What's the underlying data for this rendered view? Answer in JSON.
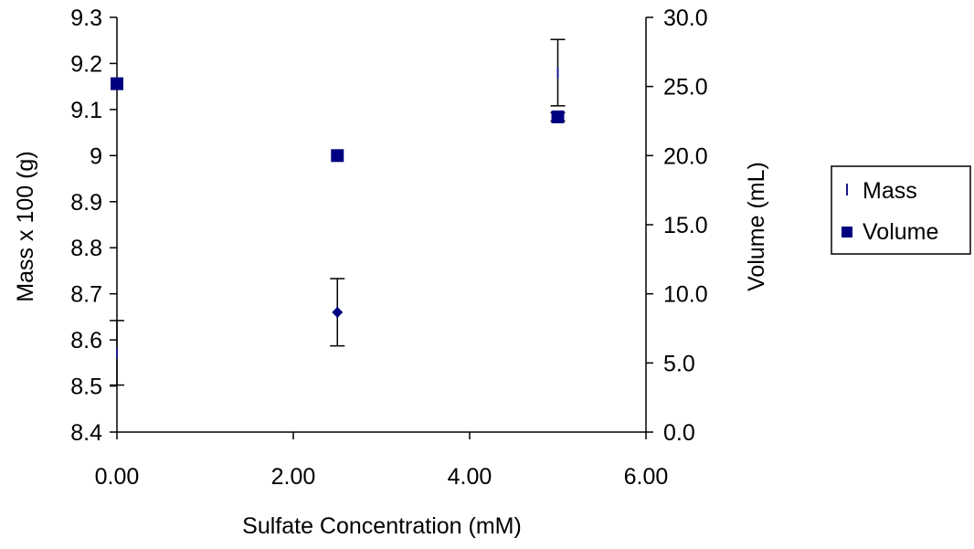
{
  "chart_data": {
    "type": "scatter",
    "xlabel": "Sulfate Concentration (mM)",
    "ylabel_left": "Mass x 100 (g)",
    "ylabel_right": "Volume (mL)",
    "xlim": [
      0,
      6
    ],
    "ylim_left": [
      8.4,
      9.3
    ],
    "ylim_right": [
      0,
      30
    ],
    "x_ticks": [
      "0.00",
      "2.00",
      "4.00",
      "6.00"
    ],
    "y_left_ticks": [
      "8.4",
      "8.5",
      "8.6",
      "8.7",
      "8.8",
      "8.9",
      "9",
      "9.1",
      "9.2",
      "9.3"
    ],
    "y_right_ticks": [
      "0.0",
      "5.0",
      "10.0",
      "15.0",
      "20.0",
      "25.0",
      "30.0"
    ],
    "grid": false,
    "legend_position": "right",
    "series": [
      {
        "name": "Mass",
        "axis": "left",
        "marker": "dash",
        "color": "#1a1a8c",
        "points": [
          {
            "x": 0.0,
            "y": 8.572,
            "err": 0.07
          },
          {
            "x": 2.5,
            "y": 8.66,
            "err": 0.073
          },
          {
            "x": 5.0,
            "y": 9.18,
            "err": 0.072
          }
        ]
      },
      {
        "name": "Volume",
        "axis": "right",
        "marker": "square",
        "color": "#000080",
        "points": [
          {
            "x": 0.0,
            "y": 25.2
          },
          {
            "x": 2.5,
            "y": 20.0
          },
          {
            "x": 5.0,
            "y": 22.8,
            "err": 0.3
          }
        ]
      }
    ],
    "extra_markers": [
      {
        "x": 2.5,
        "y": 8.66,
        "axis": "left",
        "marker": "diamond",
        "color": "#000080"
      }
    ]
  }
}
